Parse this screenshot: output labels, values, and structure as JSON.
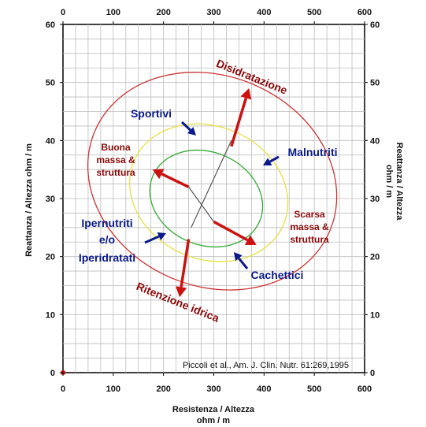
{
  "chart_data": {
    "type": "scatter",
    "subtype": "bioimpedance vector graph (RXc graph) with tolerance ellipses",
    "xlabel_lines": [
      "Resistenza / Altezza",
      "ohm / m"
    ],
    "ylabel_left": "Reattanza / Altezza ohm / m",
    "ylabel_right_lines": [
      "Reattanza / Altezza",
      "ohm / m"
    ],
    "xlim": [
      0,
      600
    ],
    "ylim": [
      0,
      60
    ],
    "x_ticks": [
      0,
      100,
      200,
      300,
      400,
      500,
      600
    ],
    "y_ticks": [
      0,
      10,
      20,
      30,
      40,
      50,
      60
    ],
    "grid": true,
    "origin_marker": {
      "x": 0,
      "y": 0,
      "color": "#cc0000"
    },
    "ellipses": [
      {
        "percentile": "95%",
        "color": "#cc3333",
        "center": [
          297,
          33
        ],
        "semi_axes_data": [
          95,
          22
        ],
        "angle_deg": 67
      },
      {
        "percentile": "75%",
        "color": "#e8e040",
        "center": [
          290,
          31
        ],
        "semi_axes_data": [
          60,
          14
        ],
        "angle_deg": 67
      },
      {
        "percentile": "50%",
        "color": "#33aa33",
        "center": [
          285,
          30
        ],
        "semi_axes_data": [
          42,
          10
        ],
        "angle_deg": 67
      }
    ],
    "axis_lines": [
      {
        "from": [
          255,
          25
        ],
        "to": [
          335,
          40
        ],
        "color": "#555555"
      },
      {
        "from": [
          250,
          32
        ],
        "to": [
          300,
          26
        ],
        "color": "#555555"
      }
    ],
    "arrows": [
      {
        "label": "Disidratazione",
        "from": [
          335,
          39
        ],
        "to": [
          370,
          49
        ],
        "color": "#cc1111"
      },
      {
        "label": "Ritenzione idrica",
        "from": [
          250,
          23
        ],
        "to": [
          232,
          13
        ],
        "color": "#cc1111"
      },
      {
        "label": "Buona massa & struttura",
        "from": [
          250,
          32
        ],
        "to": [
          178,
          35
        ],
        "color": "#cc1111"
      },
      {
        "label": "Scarsa massa & struttura",
        "from": [
          300,
          26
        ],
        "to": [
          385,
          22
        ],
        "color": "#cc1111"
      }
    ],
    "annotations": {
      "Disidratazione": "Disidratazione",
      "Ritenzione_idrica": "Ritenzione idrica",
      "Buona": [
        "Buona",
        "massa &",
        "struttura"
      ],
      "Scarsa": [
        "Scarsa",
        "massa &",
        "struttura"
      ],
      "Sportivi": "Sportivi",
      "Malnutriti": "Malnutriti",
      "Ipernutriti": [
        "Ipernutriti",
        "e/o",
        "Iperidratati"
      ],
      "Cachettici": "Cachettici"
    },
    "citation": "Piccoli et al., Am. J. Clin. Nutr. 61:269,1995",
    "colors": {
      "red_text": "#8b0a0a",
      "blue_text": "#0a1a8a",
      "arrow_red": "#cc1111",
      "blue_arrow": "#0a1a8a"
    }
  }
}
